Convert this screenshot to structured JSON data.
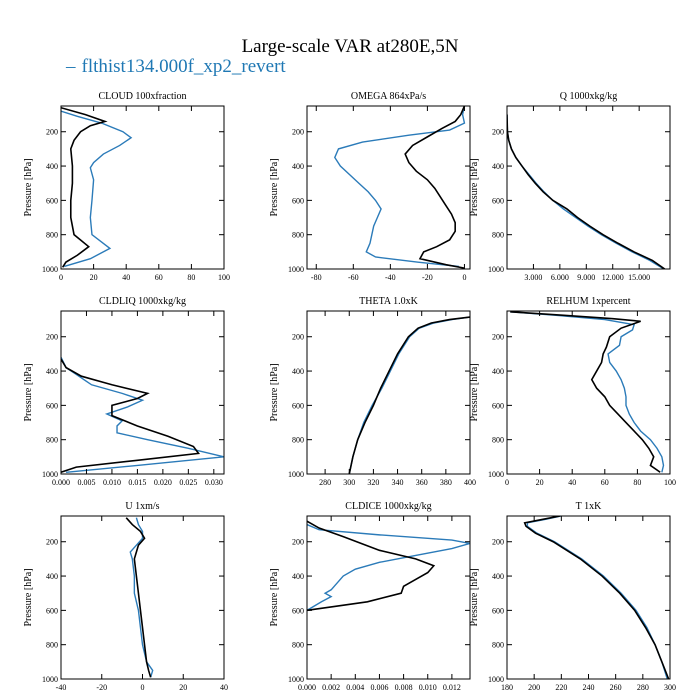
{
  "title": "Large-scale VAR at280E,5N",
  "legend": {
    "label": "flthist134.000f_xp2_revert",
    "symbol": "–",
    "color": "#1f78b4"
  },
  "colors": {
    "control": "#000000",
    "experiment": "#2b7bb9"
  },
  "ylabel": "Pressure [hPa]",
  "chart_data": [
    {
      "title": "CLOUD  100xfraction",
      "type": "line",
      "xlim": [
        0,
        100
      ],
      "xticks": [
        "0",
        "20",
        "40",
        "60",
        "80",
        "100"
      ],
      "xtickvals": [
        0,
        20,
        40,
        60,
        80,
        100
      ],
      "ylim": [
        1000,
        50
      ],
      "yticks": [
        "200",
        "400",
        "600",
        "800",
        "1000"
      ],
      "ytickvals": [
        200,
        400,
        600,
        800,
        1000
      ],
      "series": [
        {
          "role": "experiment",
          "p": [
            80,
            110,
            150,
            200,
            235,
            280,
            330,
            380,
            410,
            480,
            600,
            700,
            800,
            880,
            940,
            985
          ],
          "x": [
            0,
            10,
            25,
            38,
            43,
            36,
            26,
            20,
            18,
            20,
            19,
            18,
            19,
            30,
            18,
            2
          ]
        },
        {
          "role": "control",
          "p": [
            60,
            100,
            140,
            165,
            200,
            250,
            300,
            400,
            500,
            600,
            700,
            800,
            870,
            920,
            960,
            990
          ],
          "x": [
            0,
            15,
            27,
            18,
            12,
            8,
            6,
            7,
            7,
            6,
            6,
            8,
            17,
            10,
            3,
            1
          ]
        }
      ]
    },
    {
      "title": "OMEGA  864xPa/s",
      "type": "line",
      "xlim": [
        -85,
        3
      ],
      "xticks": [
        "-80",
        "-60",
        "-40",
        "-20",
        "0"
      ],
      "xtickvals": [
        -80,
        -60,
        -40,
        -20,
        0
      ],
      "ylim": [
        1000,
        50
      ],
      "yticks": [
        "200",
        "400",
        "600",
        "800",
        "1000"
      ],
      "ytickvals": [
        200,
        400,
        600,
        800,
        1000
      ],
      "series": [
        {
          "role": "experiment",
          "p": [
            50,
            100,
            150,
            190,
            220,
            260,
            300,
            350,
            400,
            450,
            500,
            550,
            600,
            650,
            700,
            750,
            800,
            850,
            900,
            930,
            960,
            985
          ],
          "x": [
            0,
            -1,
            0,
            -8,
            -30,
            -55,
            -68,
            -70,
            -67,
            -62,
            -57,
            -52,
            -48,
            -45,
            -47,
            -49,
            -50,
            -51,
            -53,
            -48,
            -25,
            -3
          ]
        },
        {
          "role": "control",
          "p": [
            50,
            100,
            140,
            180,
            230,
            280,
            330,
            380,
            430,
            480,
            530,
            580,
            630,
            680,
            730,
            780,
            830,
            870,
            900,
            940,
            975,
            995
          ],
          "x": [
            0,
            -2,
            -5,
            -12,
            -20,
            -28,
            -32,
            -30,
            -26,
            -20,
            -16,
            -13,
            -10,
            -7,
            -5,
            -5,
            -8,
            -15,
            -22,
            -24,
            -10,
            0
          ]
        }
      ]
    },
    {
      "title": "Q  1000xkg/kg",
      "type": "line",
      "xlim": [
        0,
        18.5
      ],
      "xticks": [
        "3.000",
        "6.000",
        "9.000",
        "12.000",
        "15.000"
      ],
      "xtickvals": [
        3,
        6,
        9,
        12,
        15
      ],
      "ylim": [
        1000,
        50
      ],
      "yticks": [
        "200",
        "400",
        "600",
        "800",
        "1000"
      ],
      "ytickvals": [
        200,
        400,
        600,
        800,
        1000
      ],
      "series": [
        {
          "role": "experiment",
          "p": [
            100,
            200,
            250,
            300,
            350,
            400,
            450,
            500,
            550,
            600,
            650,
            700,
            750,
            800,
            850,
            900,
            950,
            1000
          ],
          "x": [
            0,
            0.05,
            0.2,
            0.5,
            1,
            1.7,
            2.5,
            3.3,
            4.2,
            5.2,
            6.4,
            7.8,
            9.2,
            10.7,
            12.4,
            14.2,
            16.2,
            17.8
          ]
        },
        {
          "role": "control",
          "p": [
            100,
            200,
            250,
            300,
            350,
            400,
            450,
            500,
            550,
            600,
            650,
            700,
            750,
            800,
            850,
            900,
            950,
            1000
          ],
          "x": [
            0,
            0.05,
            0.2,
            0.5,
            1,
            1.7,
            2.4,
            3.2,
            4.1,
            5.2,
            6.8,
            8.0,
            9.4,
            10.9,
            12.6,
            14.4,
            16.5,
            17.9
          ]
        }
      ]
    },
    {
      "title": "CLDLIQ  1000xkg/kg",
      "type": "line",
      "xlim": [
        0,
        0.032
      ],
      "xticks": [
        "0.000",
        "0.005",
        "0.010",
        "0.015",
        "0.020",
        "0.025",
        "0.030"
      ],
      "xtickvals": [
        0,
        0.005,
        0.01,
        0.015,
        0.02,
        0.025,
        0.03
      ],
      "ylim": [
        1000,
        50
      ],
      "yticks": [
        "200",
        "400",
        "600",
        "800",
        "1000"
      ],
      "ytickvals": [
        200,
        400,
        600,
        800,
        1000
      ],
      "series": [
        {
          "role": "experiment",
          "p": [
            320,
            380,
            420,
            480,
            530,
            570,
            610,
            650,
            690,
            720,
            760,
            800,
            850,
            900,
            950,
            990
          ],
          "x": [
            0,
            0.001,
            0.003,
            0.006,
            0.012,
            0.016,
            0.013,
            0.009,
            0.012,
            0.011,
            0.011,
            0.017,
            0.025,
            0.032,
            0.015,
            0.001
          ]
        },
        {
          "role": "control",
          "p": [
            330,
            380,
            430,
            480,
            530,
            560,
            600,
            660,
            720,
            780,
            840,
            880,
            920,
            960,
            990
          ],
          "x": [
            0,
            0.001,
            0.004,
            0.01,
            0.017,
            0.015,
            0.01,
            0.01,
            0.015,
            0.021,
            0.026,
            0.027,
            0.015,
            0.003,
            0
          ]
        }
      ]
    },
    {
      "title": "THETA  1.0xK",
      "type": "line",
      "xlim": [
        265,
        400
      ],
      "xticks": [
        "280",
        "300",
        "320",
        "340",
        "360",
        "380",
        "400"
      ],
      "xtickvals": [
        280,
        300,
        320,
        340,
        360,
        380,
        400
      ],
      "ylim": [
        1000,
        50
      ],
      "yticks": [
        "200",
        "400",
        "600",
        "800",
        "1000"
      ],
      "ytickvals": [
        200,
        400,
        600,
        800,
        1000
      ],
      "series": [
        {
          "role": "experiment",
          "p": [
            85,
            100,
            120,
            150,
            200,
            300,
            400,
            500,
            600,
            700,
            800,
            900,
            1000
          ],
          "x": [
            400,
            385,
            370,
            358,
            350,
            341,
            334,
            327,
            319,
            312,
            307,
            303,
            300
          ]
        },
        {
          "role": "control",
          "p": [
            85,
            100,
            120,
            150,
            200,
            300,
            400,
            500,
            600,
            700,
            800,
            900,
            1000
          ],
          "x": [
            400,
            383,
            368,
            357,
            349,
            340,
            333,
            326,
            320,
            313,
            307,
            303,
            300
          ]
        }
      ]
    },
    {
      "title": "RELHUM  1xpercent",
      "type": "line",
      "xlim": [
        0,
        100
      ],
      "xticks": [
        "0",
        "20",
        "40",
        "60",
        "80",
        "100"
      ],
      "xtickvals": [
        0,
        20,
        40,
        60,
        80,
        100
      ],
      "ylim": [
        1000,
        50
      ],
      "yticks": [
        "200",
        "400",
        "600",
        "800",
        "1000"
      ],
      "ytickvals": [
        200,
        400,
        600,
        800,
        1000
      ],
      "series": [
        {
          "role": "experiment",
          "p": [
            55,
            75,
            100,
            130,
            160,
            200,
            250,
            300,
            350,
            400,
            450,
            500,
            550,
            600,
            650,
            700,
            750,
            800,
            850,
            900,
            950,
            990
          ],
          "x": [
            2,
            30,
            60,
            78,
            77,
            70,
            69,
            62,
            63,
            67,
            70,
            72,
            73,
            73,
            75,
            78,
            82,
            88,
            92,
            95,
            96,
            95
          ]
        },
        {
          "role": "control",
          "p": [
            55,
            75,
            95,
            110,
            150,
            200,
            260,
            300,
            350,
            400,
            450,
            500,
            550,
            600,
            650,
            700,
            750,
            800,
            850,
            900,
            950,
            990
          ],
          "x": [
            2,
            35,
            65,
            82,
            70,
            63,
            61,
            59,
            58,
            55,
            52,
            55,
            60,
            63,
            68,
            73,
            78,
            83,
            87,
            90,
            88,
            94
          ]
        }
      ]
    },
    {
      "title": "U  1xm/s",
      "type": "line",
      "xlim": [
        -40,
        40
      ],
      "xticks": [
        "-40",
        "-20",
        "0",
        "20",
        "40"
      ],
      "xtickvals": [
        -40,
        -20,
        0,
        20,
        40
      ],
      "ylim": [
        1000,
        50
      ],
      "yticks": [
        "200",
        "400",
        "600",
        "800",
        "1000"
      ],
      "ytickvals": [
        200,
        400,
        600,
        800,
        1000
      ],
      "series": [
        {
          "role": "experiment",
          "p": [
            60,
            100,
            140,
            180,
            220,
            260,
            300,
            400,
            500,
            600,
            700,
            800,
            900,
            950,
            990
          ],
          "x": [
            -3,
            -2,
            0,
            0,
            -3,
            -6,
            -5,
            -4,
            -4,
            -2,
            -1,
            0,
            2,
            5,
            4
          ]
        },
        {
          "role": "control",
          "p": [
            60,
            100,
            140,
            180,
            220,
            260,
            300,
            400,
            500,
            600,
            700,
            800,
            900,
            950,
            990
          ],
          "x": [
            -8,
            -5,
            -1,
            1,
            -2,
            -3,
            -4,
            -3,
            -2,
            -1,
            0,
            1,
            2,
            3,
            4
          ]
        }
      ]
    },
    {
      "title": "CLDICE  1000xkg/kg",
      "type": "line",
      "xlim": [
        0,
        0.0135
      ],
      "xticks": [
        "0.000",
        "0.002",
        "0.004",
        "0.006",
        "0.008",
        "0.010",
        "0.012"
      ],
      "xtickvals": [
        0,
        0.002,
        0.004,
        0.006,
        0.008,
        0.01,
        0.012
      ],
      "ylim": [
        1000,
        50
      ],
      "yticks": [
        "200",
        "400",
        "600",
        "800",
        "1000"
      ],
      "ytickvals": [
        200,
        400,
        600,
        800,
        1000
      ],
      "series": [
        {
          "role": "experiment",
          "p": [
            100,
            130,
            160,
            190,
            210,
            240,
            280,
            320,
            360,
            400,
            440,
            480,
            500,
            520,
            550,
            600
          ],
          "x": [
            0,
            0.001,
            0.006,
            0.012,
            0.0135,
            0.012,
            0.009,
            0.006,
            0.004,
            0.003,
            0.0025,
            0.002,
            0.0015,
            0.002,
            0.0012,
            0
          ]
        },
        {
          "role": "control",
          "p": [
            80,
            120,
            170,
            210,
            250,
            300,
            340,
            380,
            420,
            460,
            500,
            550,
            580,
            600
          ],
          "x": [
            0,
            0.001,
            0.003,
            0.0045,
            0.006,
            0.009,
            0.0105,
            0.01,
            0.009,
            0.008,
            0.0078,
            0.005,
            0.002,
            0
          ]
        }
      ]
    },
    {
      "title": "T  1xK",
      "type": "line",
      "xlim": [
        180,
        300
      ],
      "xticks": [
        "180",
        "200",
        "220",
        "240",
        "260",
        "280",
        "300"
      ],
      "xtickvals": [
        180,
        200,
        220,
        240,
        260,
        280,
        300
      ],
      "ylim": [
        1000,
        50
      ],
      "yticks": [
        "200",
        "400",
        "600",
        "800",
        "1000"
      ],
      "ytickvals": [
        200,
        400,
        600,
        800,
        1000
      ],
      "series": [
        {
          "role": "experiment",
          "p": [
            50,
            70,
            90,
            110,
            150,
            200,
            300,
            400,
            500,
            600,
            700,
            800,
            900,
            1000
          ],
          "x": [
            220,
            208,
            195,
            195,
            202,
            215,
            235,
            251,
            264,
            275,
            283,
            289,
            294,
            298
          ]
        },
        {
          "role": "control",
          "p": [
            50,
            70,
            90,
            110,
            150,
            200,
            300,
            400,
            500,
            600,
            700,
            800,
            900,
            1000
          ],
          "x": [
            219,
            206,
            193,
            194,
            201,
            214,
            234,
            250,
            263,
            274,
            282,
            289,
            294,
            299
          ]
        }
      ]
    }
  ]
}
